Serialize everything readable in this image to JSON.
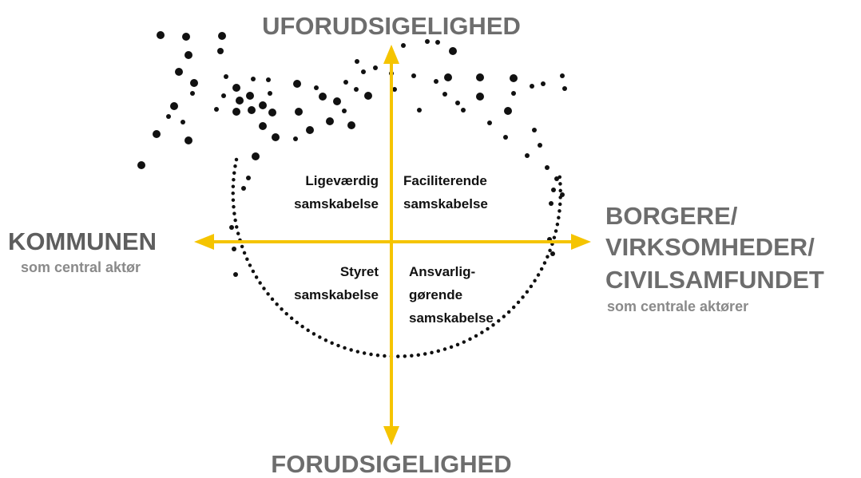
{
  "top_label": "UFORUDSIGELIGHED",
  "bottom_label": "FORUDSIGELIGHED",
  "left_label": {
    "title": "KOMMUNEN",
    "subtitle": "som central aktør"
  },
  "right_label": {
    "lines": [
      "BORGERE/",
      "VIRKSOMHEDER/",
      "CIVILSAMFUNDET"
    ],
    "subtitle": "som centrale aktører"
  },
  "quadrants": [
    {
      "lines": [
        "Ligeværdig",
        "samskabelse"
      ]
    },
    {
      "lines": [
        "Faciliterende",
        "samskabelse"
      ]
    },
    {
      "lines": [
        "Styret",
        "samskabelse"
      ]
    },
    {
      "lines": [
        "Ansvarlig-",
        "gørende",
        "samskabelse"
      ]
    }
  ]
}
